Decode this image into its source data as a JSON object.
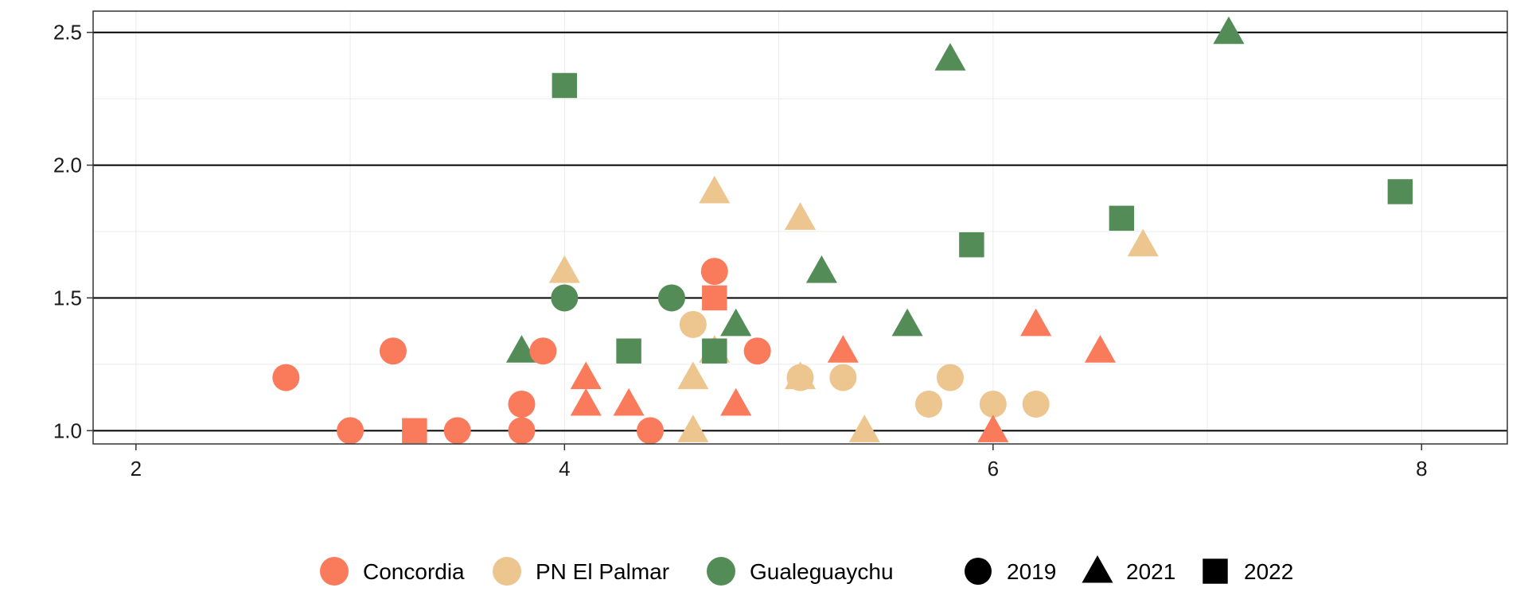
{
  "chart_data": {
    "type": "scatter",
    "xlim": [
      1.8,
      8.4
    ],
    "ylim": [
      0.95,
      2.58
    ],
    "x_ticks": [
      2,
      4,
      6,
      8
    ],
    "y_ticks": [
      1.0,
      1.5,
      2.0,
      2.5
    ],
    "y_tick_labels": [
      "1.0",
      "1.5",
      "2.0",
      "2.5"
    ],
    "x_tick_labels": [
      "2",
      "4",
      "6",
      "8"
    ],
    "grid": true,
    "legend_position": "bottom",
    "site_legend": [
      {
        "label": "Concordia",
        "color": "#FA7A5C"
      },
      {
        "label": "PN El Palmar",
        "color": "#ECC58F"
      },
      {
        "label": "Gualeguaychu",
        "color": "#548C57"
      }
    ],
    "year_legend": [
      {
        "label": "2019",
        "shape": "circle"
      },
      {
        "label": "2021",
        "shape": "triangle"
      },
      {
        "label": "2022",
        "shape": "square"
      }
    ],
    "series": [
      {
        "site": "PN El Palmar",
        "year": "2019",
        "points": [
          [
            4.6,
            1.4
          ],
          [
            5.1,
            1.2
          ],
          [
            5.3,
            1.2
          ],
          [
            5.7,
            1.1
          ],
          [
            5.8,
            1.2
          ],
          [
            6.0,
            1.1
          ],
          [
            6.2,
            1.1
          ]
        ]
      },
      {
        "site": "PN El Palmar",
        "year": "2021",
        "points": [
          [
            4.0,
            1.6
          ],
          [
            4.6,
            1.0
          ],
          [
            4.6,
            1.2
          ],
          [
            4.7,
            1.9
          ],
          [
            4.7,
            1.3
          ],
          [
            4.8,
            1.1
          ],
          [
            5.1,
            1.8
          ],
          [
            5.1,
            1.2
          ],
          [
            5.4,
            1.0
          ],
          [
            6.7,
            1.7
          ]
        ]
      },
      {
        "site": "Gualeguaychu",
        "year": "2019",
        "points": [
          [
            4.0,
            1.5
          ],
          [
            4.5,
            1.5
          ]
        ]
      },
      {
        "site": "Gualeguaychu",
        "year": "2021",
        "points": [
          [
            3.8,
            1.3
          ],
          [
            4.8,
            1.4
          ],
          [
            5.2,
            1.6
          ],
          [
            5.6,
            1.4
          ],
          [
            5.8,
            2.4
          ],
          [
            7.1,
            2.5
          ]
        ]
      },
      {
        "site": "Gualeguaychu",
        "year": "2022",
        "points": [
          [
            4.0,
            2.3
          ],
          [
            4.3,
            1.3
          ],
          [
            4.7,
            1.3
          ],
          [
            5.9,
            1.7
          ],
          [
            6.6,
            1.8
          ],
          [
            7.9,
            1.9
          ]
        ]
      },
      {
        "site": "Concordia",
        "year": "2019",
        "points": [
          [
            2.7,
            1.2
          ],
          [
            3.0,
            1.0
          ],
          [
            3.2,
            1.3
          ],
          [
            3.5,
            1.0
          ],
          [
            3.8,
            1.0
          ],
          [
            3.8,
            1.1
          ],
          [
            3.9,
            1.3
          ],
          [
            4.4,
            1.0
          ],
          [
            4.7,
            1.6
          ],
          [
            4.9,
            1.3
          ]
        ]
      },
      {
        "site": "Concordia",
        "year": "2021",
        "points": [
          [
            4.1,
            1.2
          ],
          [
            4.1,
            1.1
          ],
          [
            4.3,
            1.1
          ],
          [
            4.8,
            1.1
          ],
          [
            5.3,
            1.3
          ],
          [
            6.0,
            1.0
          ],
          [
            6.2,
            1.4
          ],
          [
            6.5,
            1.3
          ]
        ]
      },
      {
        "site": "Concordia",
        "year": "2022",
        "points": [
          [
            3.3,
            1.0
          ],
          [
            4.7,
            1.5
          ]
        ]
      }
    ]
  }
}
